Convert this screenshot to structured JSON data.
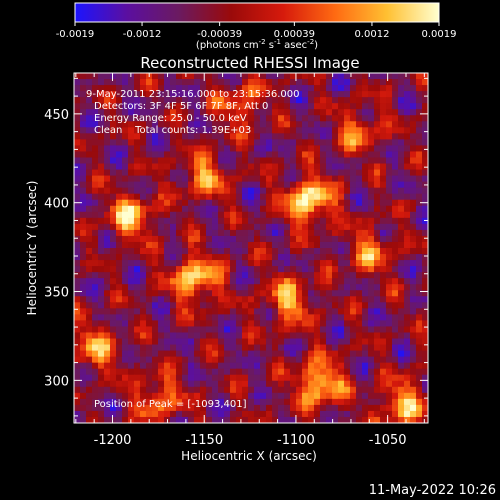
{
  "colorbar": {
    "ticks": [
      "-0.0019",
      "-0.0012",
      "-0.00039",
      "0.00039",
      "0.0012",
      "0.0019"
    ],
    "units_prefix": "(photons cm",
    "units_exp1": "-2",
    "units_mid1": " s",
    "units_exp2": "-1",
    "units_mid2": " asec",
    "units_exp3": "-2",
    "units_suffix": ")",
    "range": [
      -0.0019,
      0.0019
    ],
    "colormap": [
      "#1c14ff",
      "#5b0fa0",
      "#6b1a60",
      "#9a0a0a",
      "#d61a0c",
      "#ff6a12",
      "#ffc032",
      "#ffffd0"
    ]
  },
  "chart_data": {
    "type": "heatmap",
    "title": "Reconstructed RHESSI Image",
    "xlabel": "Heliocentric X (arcsec)",
    "ylabel": "Heliocentric Y (arcsec)",
    "xlim": [
      -1221,
      -1028
    ],
    "ylim": [
      276,
      473
    ],
    "xticks": [
      -1200,
      -1150,
      -1100,
      -1050
    ],
    "yticks": [
      300,
      350,
      400,
      450
    ],
    "annotations": [
      "9-May-2011 23:15:16.000 to 23:15:36.000",
      "Detectors: 3F 4F 5F 6F 7F 8F, Att 0",
      "Energy Range: 25.0 - 50.0 keV",
      "Clean    Total counts: 1.39E+03"
    ],
    "peak_label": "Position of Peak = [-1093,401]",
    "peak_position": [
      -1093,
      401
    ],
    "hotspots": [
      {
        "x": -1093,
        "y": 401,
        "intensity": 0.0019
      },
      {
        "x": -1155,
        "y": 357,
        "intensity": 0.0016
      },
      {
        "x": -1087,
        "y": 298,
        "intensity": 0.0017
      },
      {
        "x": -1190,
        "y": 392,
        "intensity": 0.0013
      },
      {
        "x": -1042,
        "y": 287,
        "intensity": 0.0012
      },
      {
        "x": -1104,
        "y": 345,
        "intensity": 0.0011
      },
      {
        "x": -1150,
        "y": 415,
        "intensity": 0.0009
      },
      {
        "x": -1210,
        "y": 318,
        "intensity": 0.001
      },
      {
        "x": -1060,
        "y": 372,
        "intensity": 0.0008
      },
      {
        "x": -1130,
        "y": 455,
        "intensity": 0.0007
      },
      {
        "x": -1175,
        "y": 290,
        "intensity": 0.0009
      },
      {
        "x": -1065,
        "y": 440,
        "intensity": 0.0007
      }
    ]
  },
  "footer": {
    "timestamp": "11-May-2022 10:26"
  }
}
